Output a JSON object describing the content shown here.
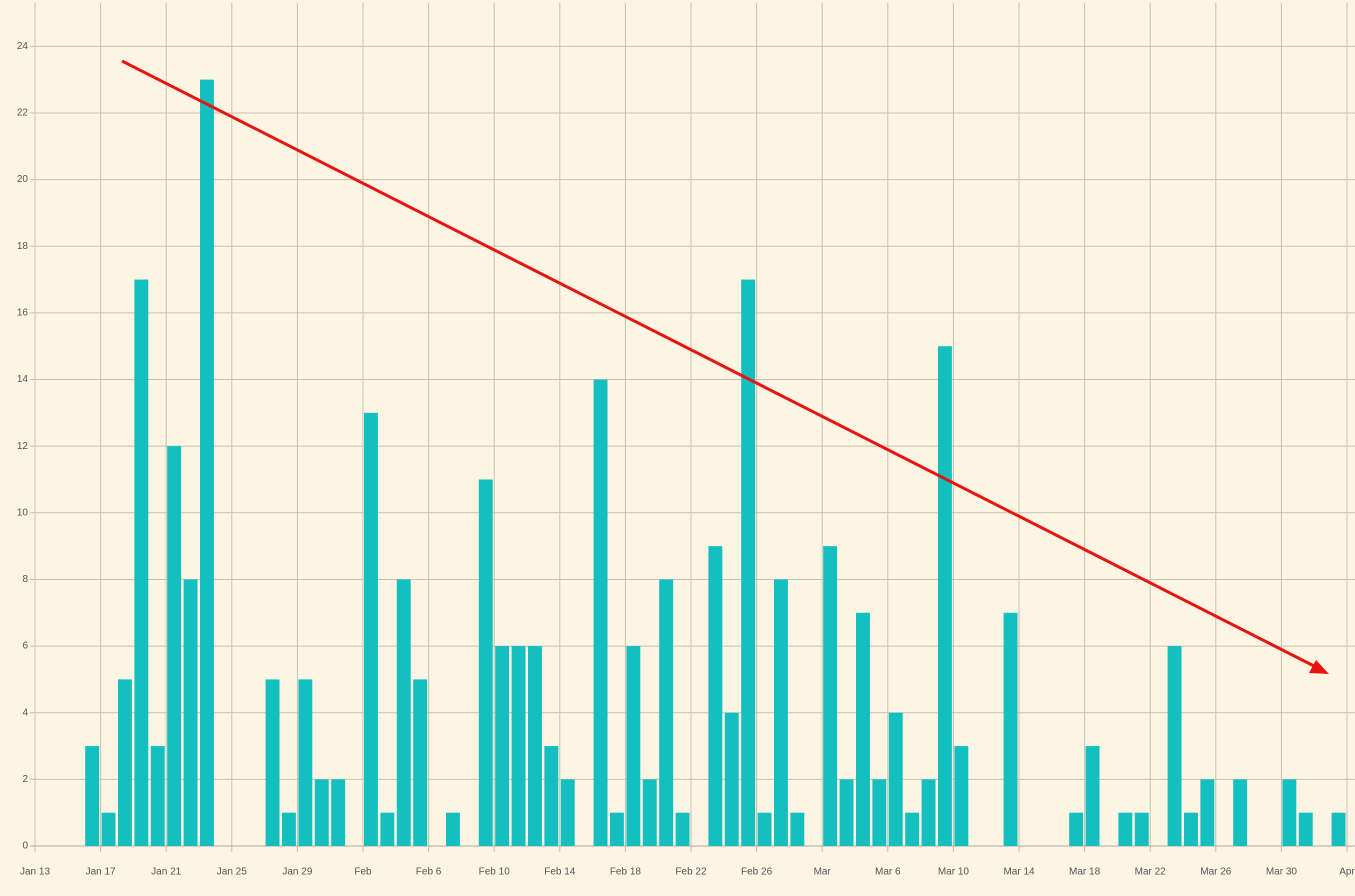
{
  "chart_data": {
    "type": "bar",
    "categories": [
      "Jan 13",
      null,
      null,
      null,
      "Jan 17",
      null,
      null,
      null,
      "Jan 21",
      null,
      null,
      null,
      "Jan 25",
      null,
      null,
      null,
      "Jan 29",
      null,
      null,
      null,
      "Feb",
      null,
      null,
      null,
      "Feb 6",
      null,
      null,
      null,
      "Feb 10",
      null,
      null,
      null,
      "Feb 14",
      null,
      null,
      null,
      "Feb 18",
      null,
      null,
      null,
      "Feb 22",
      null,
      null,
      null,
      "Feb 26",
      null,
      null,
      null,
      "Mar",
      null,
      null,
      null,
      "Mar 6",
      null,
      null,
      null,
      "Mar 10",
      null,
      null,
      null,
      "Mar 14",
      null,
      null,
      null,
      "Mar 18",
      null,
      null,
      null,
      "Mar 22",
      null,
      null,
      null,
      "Mar 26",
      null,
      null,
      null,
      "Mar 30",
      null,
      null,
      null,
      "Apr"
    ],
    "values": [
      0,
      0,
      0,
      3,
      1,
      5,
      17,
      3,
      12,
      8,
      23,
      0,
      0,
      0,
      5,
      1,
      5,
      2,
      2,
      0,
      13,
      1,
      8,
      5,
      0,
      1,
      0,
      11,
      6,
      6,
      6,
      3,
      2,
      0,
      14,
      1,
      6,
      2,
      8,
      1,
      0,
      9,
      4,
      17,
      1,
      8,
      1,
      0,
      9,
      2,
      7,
      2,
      4,
      1,
      2,
      15,
      3,
      0,
      0,
      7,
      0,
      0,
      0,
      1,
      3,
      0,
      1,
      1,
      0,
      6,
      1,
      2,
      0,
      2,
      0,
      0,
      2,
      1,
      0,
      1,
      null
    ],
    "color": "#14bfbf",
    "ylim": [
      0,
      25.3
    ],
    "yticks": [
      0,
      2,
      4,
      6,
      8,
      10,
      12,
      14,
      16,
      18,
      20,
      22,
      24
    ],
    "grid": true
  }
}
